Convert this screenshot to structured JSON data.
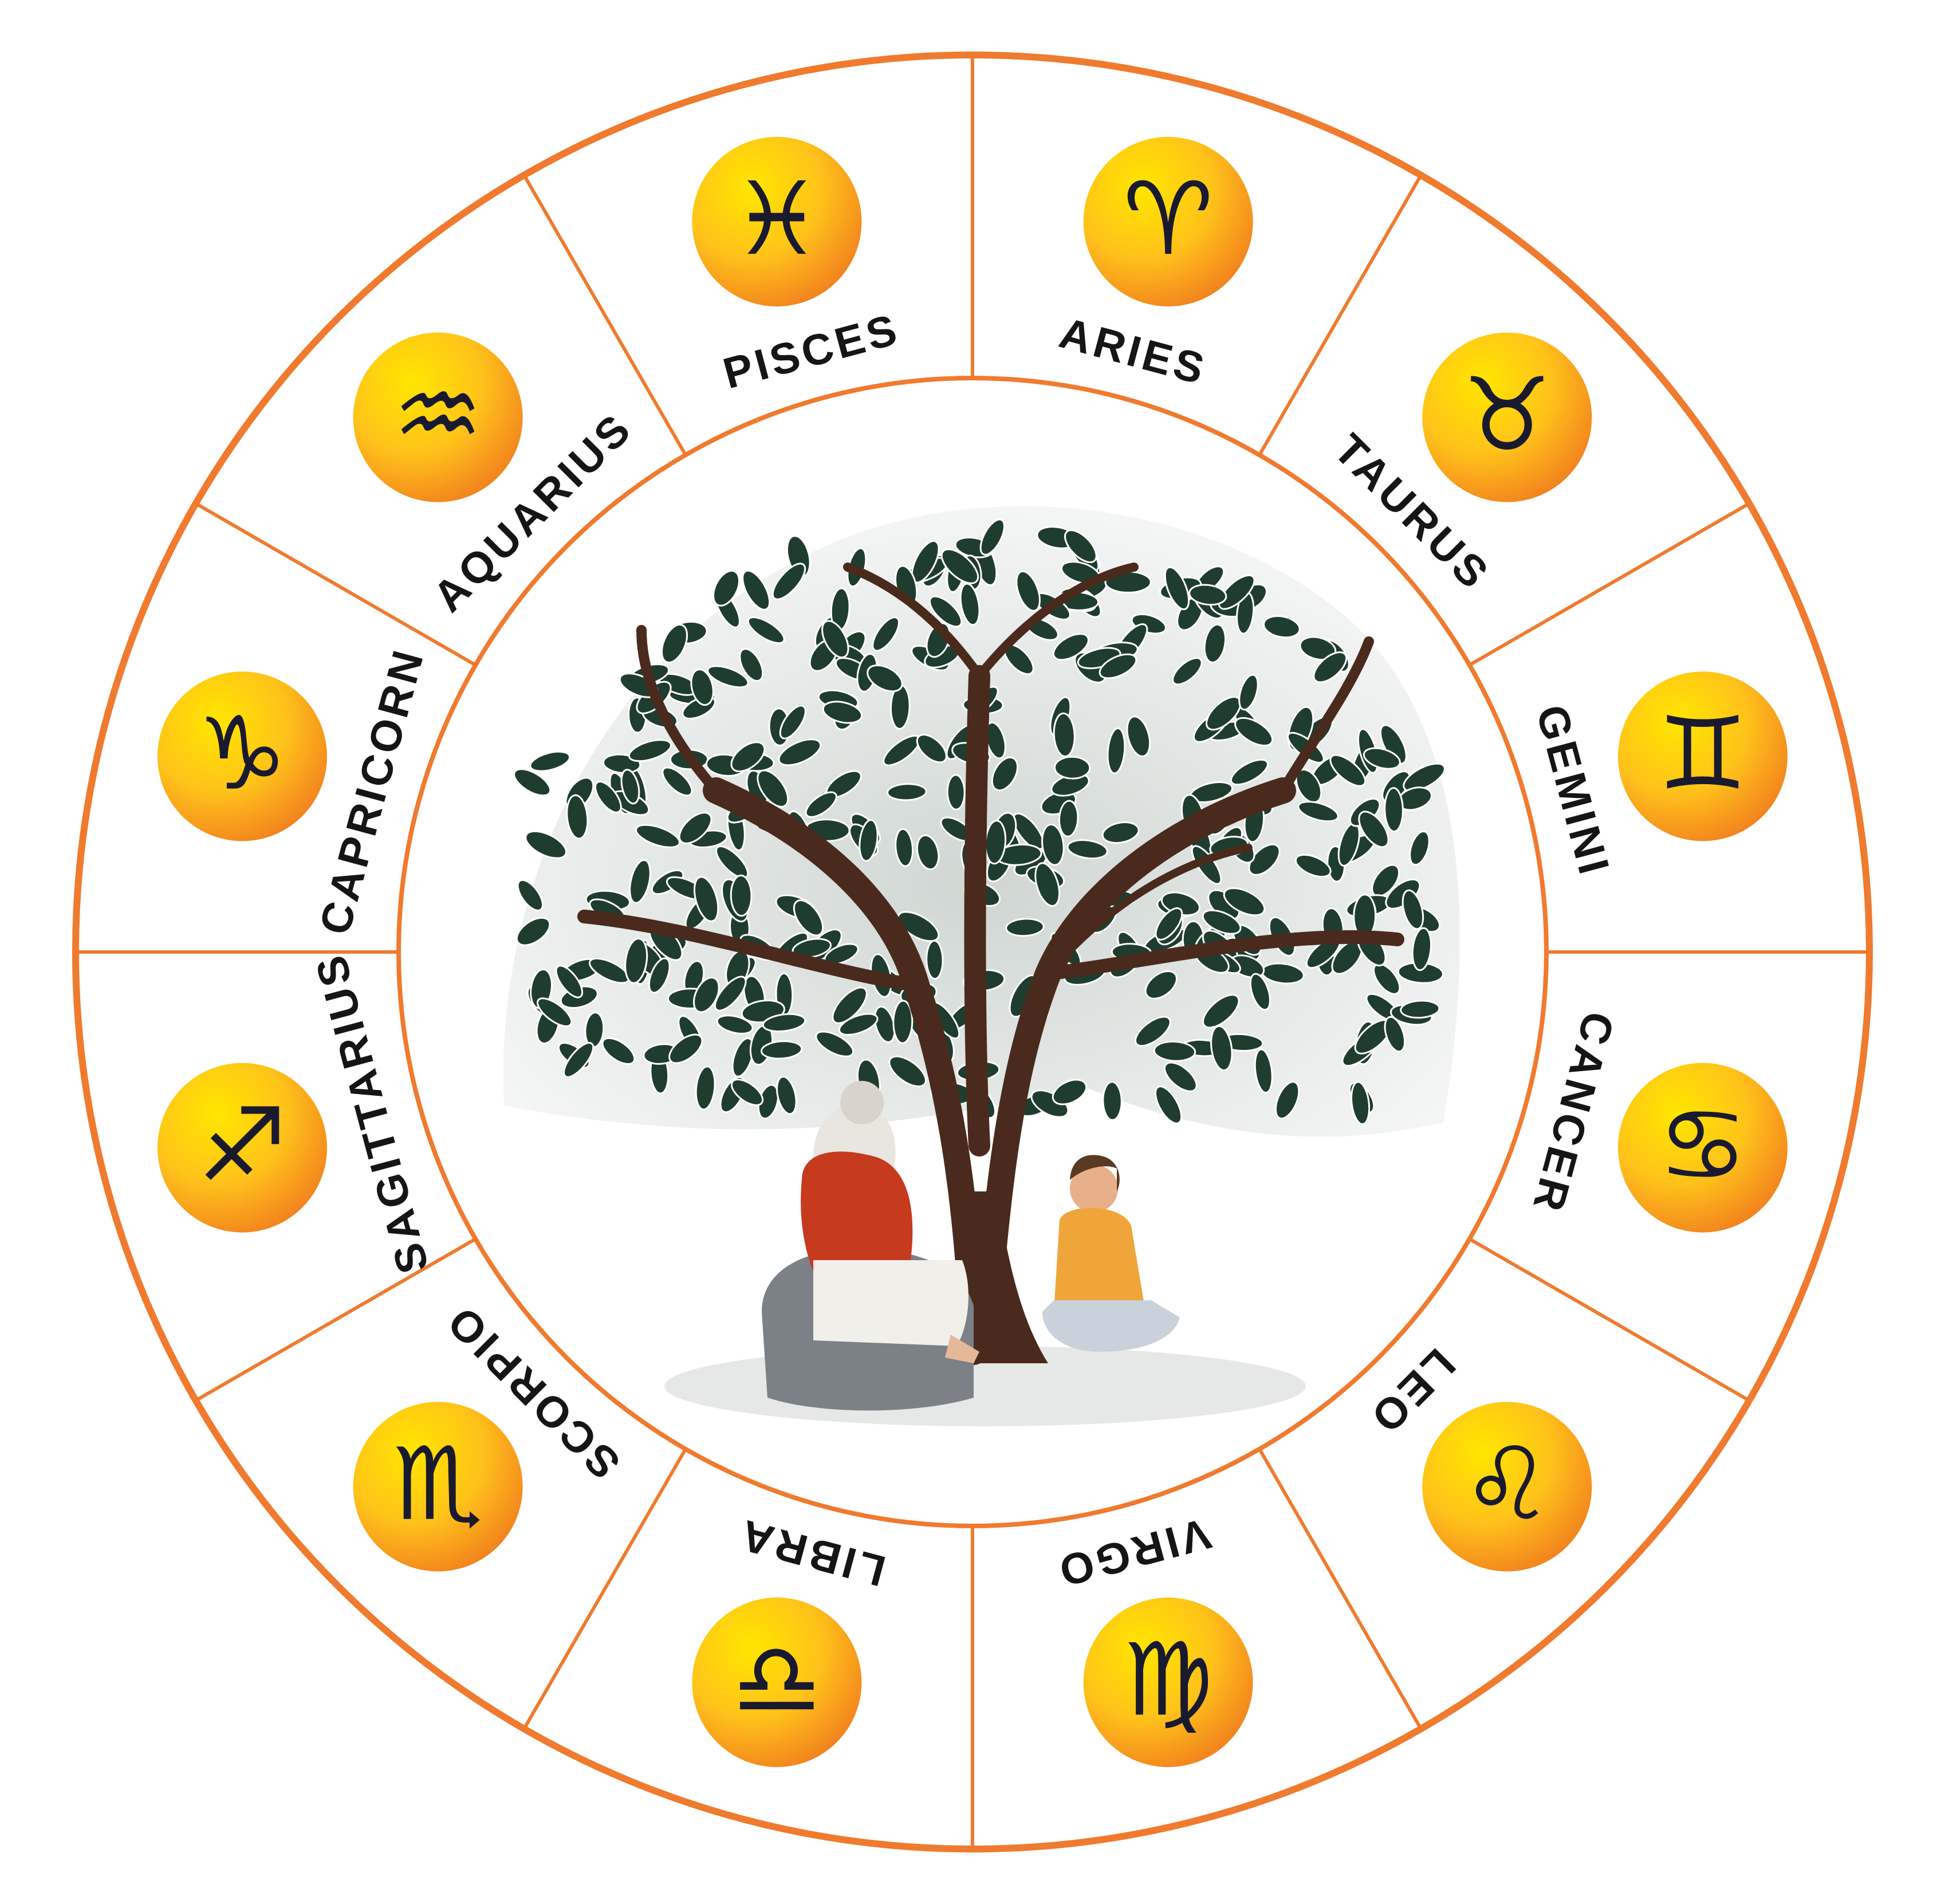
{
  "colors": {
    "ring": "#f07a2e",
    "badge_light": "#ffe600",
    "badge_dark": "#f2831e",
    "glyph": "#1a1a2e",
    "leaf": "#1f3d2e",
    "trunk": "#4a2a1c"
  },
  "signs": [
    {
      "name": "ARIES",
      "glyph": "♈"
    },
    {
      "name": "TAURUS",
      "glyph": "♉"
    },
    {
      "name": "GEMINI",
      "glyph": "♊"
    },
    {
      "name": "CANCER",
      "glyph": "♋"
    },
    {
      "name": "LEO",
      "glyph": "♌"
    },
    {
      "name": "VIRGO",
      "glyph": "♍"
    },
    {
      "name": "LIBRA",
      "glyph": "♎"
    },
    {
      "name": "SCORPIO",
      "glyph": "♏"
    },
    {
      "name": "SAGITTARIUS",
      "glyph": "♐"
    },
    {
      "name": "CAPRICORN",
      "glyph": "♑"
    },
    {
      "name": "AQUARIUS",
      "glyph": "♒"
    },
    {
      "name": "PISCES",
      "glyph": "♓"
    }
  ],
  "center_illustration": {
    "icon": "tree-sage-disciple-illustration"
  }
}
